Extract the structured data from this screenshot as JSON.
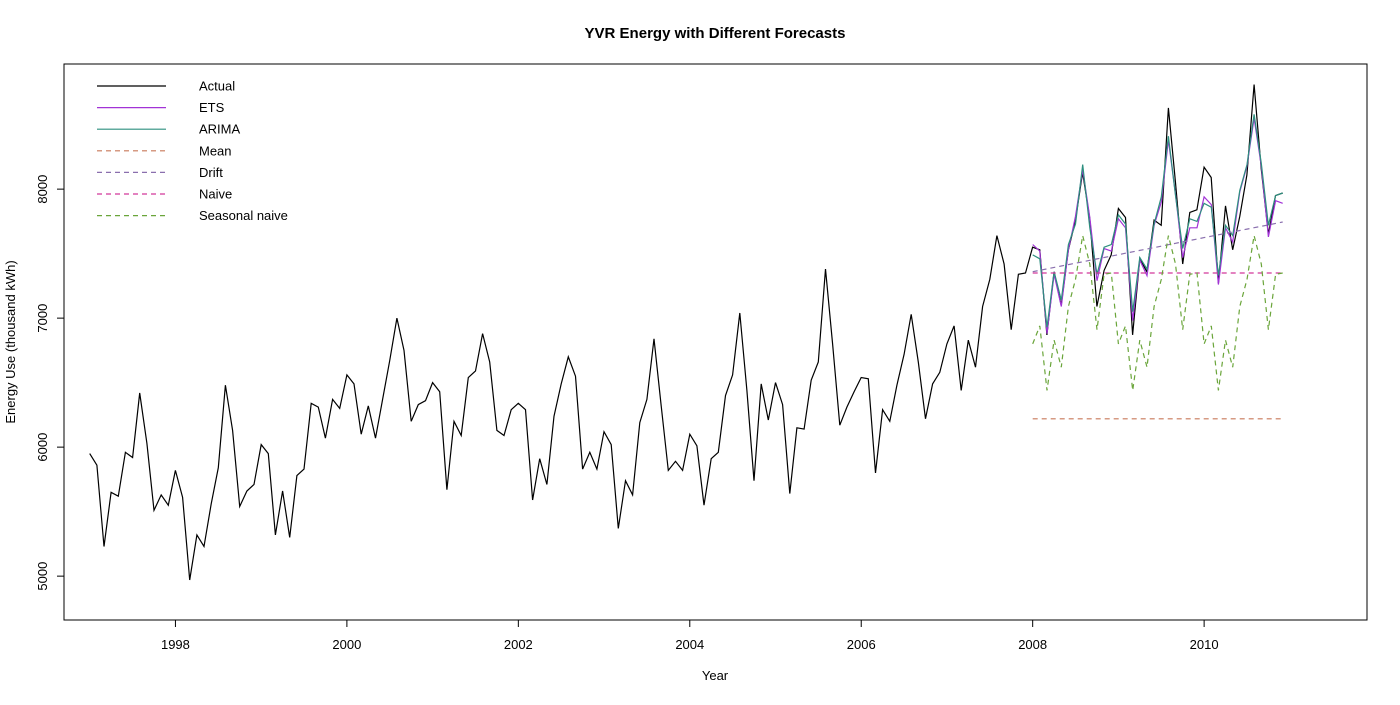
{
  "chart_data": {
    "type": "line",
    "title": "YVR Energy with Different Forecasts",
    "xlabel": "Year",
    "ylabel": "Energy Use (thousand kWh)",
    "xlim": [
      1996.7,
      2011.9
    ],
    "ylim": [
      4660,
      8970
    ],
    "x_ticks": [
      1998,
      2000,
      2002,
      2004,
      2006,
      2008,
      2010
    ],
    "y_ticks": [
      5000,
      6000,
      7000,
      8000
    ],
    "grid": false,
    "legend_position": "top-left",
    "series": [
      {
        "name": "Actual",
        "color": "#000000",
        "dash": "solid",
        "start": 1997.0,
        "step": 0.08333,
        "values": [
          5950,
          5860,
          5230,
          5650,
          5620,
          5960,
          5920,
          6420,
          6030,
          5510,
          5630,
          5550,
          5820,
          5610,
          4970,
          5320,
          5230,
          5560,
          5840,
          6480,
          6130,
          5540,
          5660,
          5710,
          6020,
          5950,
          5320,
          5660,
          5300,
          5780,
          5830,
          6340,
          6310,
          6070,
          6370,
          6300,
          6560,
          6490,
          6100,
          6320,
          6070,
          6370,
          6670,
          7000,
          6750,
          6200,
          6330,
          6360,
          6500,
          6430,
          5670,
          6200,
          6090,
          6540,
          6590,
          6880,
          6660,
          6130,
          6090,
          6290,
          6340,
          6290,
          5590,
          5910,
          5710,
          6240,
          6490,
          6700,
          6550,
          5830,
          5960,
          5830,
          6120,
          6020,
          5370,
          5740,
          5630,
          6190,
          6370,
          6840,
          6320,
          5820,
          5890,
          5820,
          6100,
          6010,
          5550,
          5910,
          5960,
          6400,
          6560,
          7040,
          6440,
          5740,
          6490,
          6210,
          6500,
          6330,
          5640,
          6150,
          6140,
          6520,
          6660,
          7380,
          6800,
          6170,
          6310,
          6430,
          6540,
          6530,
          5800,
          6290,
          6200,
          6480,
          6720,
          7030,
          6660,
          6220,
          6490,
          6580,
          6800,
          6940,
          6440,
          6830,
          6620,
          7090,
          7300,
          7640,
          7420,
          6910,
          7340,
          7350,
          7550,
          7530,
          6870,
          7360,
          7100,
          7530,
          7760,
          8130,
          7770,
          7090,
          7370,
          7490,
          7850,
          7780,
          6870,
          7460,
          7360,
          7760,
          7720,
          8630,
          8050,
          7420,
          7820,
          7840,
          8170,
          8090,
          7270,
          7870,
          7530,
          7790,
          8110,
          8810,
          8160,
          7650,
          7950,
          7970
        ]
      },
      {
        "name": "ETS",
        "color": "#a233d6",
        "dash": "solid",
        "start": 2008.0,
        "step": 0.08333,
        "values": [
          7570,
          7520,
          6880,
          7340,
          7090,
          7530,
          7790,
          8150,
          7780,
          7290,
          7540,
          7520,
          7770,
          7700,
          6980,
          7450,
          7330,
          7720,
          7900,
          8380,
          7960,
          7470,
          7700,
          7700,
          7940,
          7880,
          7260,
          7700,
          7590,
          7980,
          8180,
          8550,
          8180,
          7630,
          7910,
          7890
        ]
      },
      {
        "name": "ARIMA",
        "color": "#2d8f7f",
        "dash": "solid",
        "start": 2008.0,
        "step": 0.08333,
        "values": [
          7490,
          7460,
          6930,
          7360,
          7140,
          7570,
          7730,
          8190,
          7700,
          7340,
          7550,
          7570,
          7800,
          7730,
          7050,
          7470,
          7380,
          7730,
          7940,
          8410,
          7950,
          7540,
          7770,
          7750,
          7890,
          7860,
          7330,
          7720,
          7640,
          7990,
          8190,
          8580,
          8200,
          7720,
          7950,
          7970
        ]
      },
      {
        "name": "Mean",
        "color": "#c8785a",
        "dash": "dashed",
        "start": 2008.0,
        "step": 0.08333,
        "values": [
          6220,
          6220,
          6220,
          6220,
          6220,
          6220,
          6220,
          6220,
          6220,
          6220,
          6220,
          6220,
          6220,
          6220,
          6220,
          6220,
          6220,
          6220,
          6220,
          6220,
          6220,
          6220,
          6220,
          6220,
          6220,
          6220,
          6220,
          6220,
          6220,
          6220,
          6220,
          6220,
          6220,
          6220,
          6220,
          6220
        ]
      },
      {
        "name": "Drift",
        "color": "#8a6fae",
        "dash": "dashed",
        "start": 2008.0,
        "step": 0.08333,
        "values": [
          7360,
          7371,
          7382,
          7393,
          7404,
          7415,
          7426,
          7437,
          7448,
          7459,
          7470,
          7481,
          7492,
          7503,
          7514,
          7525,
          7536,
          7547,
          7558,
          7569,
          7580,
          7591,
          7602,
          7613,
          7624,
          7635,
          7646,
          7657,
          7668,
          7679,
          7690,
          7701,
          7712,
          7723,
          7734,
          7745
        ]
      },
      {
        "name": "Naive",
        "color": "#d2379a",
        "dash": "dashed",
        "start": 2008.0,
        "step": 0.08333,
        "values": [
          7350,
          7350,
          7350,
          7350,
          7350,
          7350,
          7350,
          7350,
          7350,
          7350,
          7350,
          7350,
          7350,
          7350,
          7350,
          7350,
          7350,
          7350,
          7350,
          7350,
          7350,
          7350,
          7350,
          7350,
          7350,
          7350,
          7350,
          7350,
          7350,
          7350,
          7350,
          7350,
          7350,
          7350,
          7350,
          7350
        ]
      },
      {
        "name": "Seasonal naive",
        "color": "#6aa53a",
        "dash": "dashed",
        "start": 2008.0,
        "step": 0.08333,
        "values": [
          6800,
          6940,
          6440,
          6830,
          6620,
          7090,
          7300,
          7640,
          7420,
          6910,
          7340,
          7350,
          6800,
          6940,
          6440,
          6830,
          6620,
          7090,
          7300,
          7640,
          7420,
          6910,
          7340,
          7350,
          6800,
          6940,
          6440,
          6830,
          6620,
          7090,
          7300,
          7640,
          7420,
          6910,
          7340,
          7350
        ]
      }
    ]
  }
}
